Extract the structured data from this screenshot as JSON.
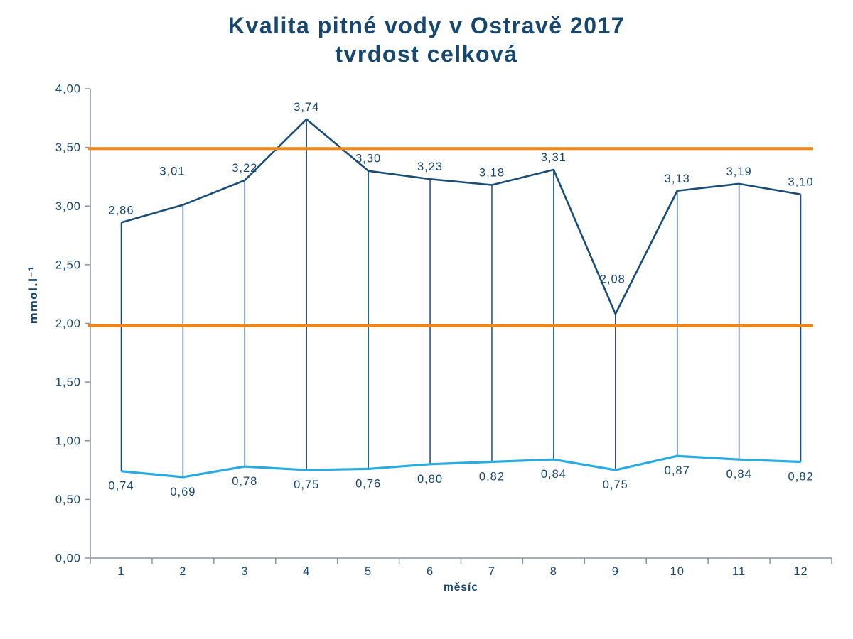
{
  "title": {
    "line1": "Kvalita pitné vody v Ostravě 2017",
    "line2": "tvrdost celková"
  },
  "colors": {
    "navy_text": "#17476F",
    "dark_blue_line": "#1A4C76",
    "light_blue_line": "#29ABE2",
    "orange_limit_line": "#F5850F",
    "axis_gray": "#8A949E"
  },
  "chart_data": {
    "type": "line",
    "title": "Kvalita pitné vody v Ostravě 2017 — tvrdost celková",
    "xlabel": "měsíc",
    "ylabel": "mmol.l⁻¹",
    "ylim": [
      0,
      4
    ],
    "ytick_step": 0.5,
    "ytick_values": [
      0,
      0.5,
      1,
      1.5,
      2,
      2.5,
      3,
      3.5,
      4
    ],
    "ytick_labels": [
      "0,00",
      "0,50",
      "1,00",
      "1,50",
      "2,00",
      "2,50",
      "3,00",
      "3,50",
      "4,00"
    ],
    "categories": [
      "1",
      "2",
      "3",
      "4",
      "5",
      "6",
      "7",
      "8",
      "9",
      "10",
      "11",
      "12"
    ],
    "grid": false,
    "legend": "none",
    "high_low_lines": true,
    "series": [
      {
        "name": "series-1-dark-blue",
        "color": "#1A4C76",
        "values": [
          2.86,
          3.01,
          3.22,
          3.74,
          3.3,
          3.23,
          3.18,
          3.31,
          2.08,
          3.13,
          3.19,
          3.1
        ],
        "labels": [
          "2,86",
          "3,01",
          "3,22",
          "3,74",
          "3,30",
          "3,23",
          "3,18",
          "3,31",
          "2,08",
          "3,13",
          "3,19",
          "3,10"
        ]
      },
      {
        "name": "series-2-light-blue",
        "color": "#29ABE2",
        "values": [
          0.74,
          0.69,
          0.78,
          0.75,
          0.76,
          0.8,
          0.82,
          0.84,
          0.75,
          0.87,
          0.84,
          0.82
        ],
        "labels": [
          "0,74",
          "0,69",
          "0,78",
          "0,75",
          "0,76",
          "0,80",
          "0,82",
          "0,84",
          "0,75",
          "0,87",
          "0,84",
          "0,82"
        ]
      }
    ],
    "reference_lines": [
      {
        "value": 3.49,
        "color": "#F5850F"
      },
      {
        "value": 1.98,
        "color": "#F5850F"
      }
    ]
  }
}
